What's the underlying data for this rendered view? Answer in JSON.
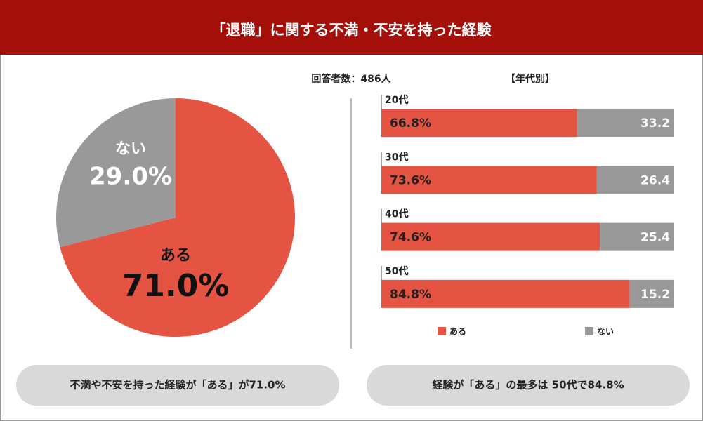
{
  "title": "「退職」に関する不満・不安を持った経験",
  "respondents": "回答者数：486人",
  "chart_data": [
    {
      "type": "pie",
      "categories": [
        "ある",
        "ない"
      ],
      "values": [
        71.0,
        29.0
      ],
      "value_labels": [
        "71.0%",
        "29.0%"
      ],
      "colors": [
        "#e55343",
        "#999999"
      ]
    },
    {
      "type": "bar",
      "orientation": "horizontal",
      "stacked": true,
      "title": "【年代別】",
      "categories": [
        "20代",
        "30代",
        "40代",
        "50代"
      ],
      "series": [
        {
          "name": "ある",
          "color": "#e55343",
          "values": [
            66.8,
            73.6,
            74.6,
            84.8
          ],
          "value_labels": [
            "66.8%",
            "73.6%",
            "74.6%",
            "84.8%"
          ]
        },
        {
          "name": "ない",
          "color": "#999999",
          "values": [
            33.2,
            26.4,
            25.4,
            15.2
          ]
        }
      ],
      "xlim": [
        0,
        100
      ]
    }
  ],
  "callouts": [
    "不満や不安を持った経験が「ある」が71.0%",
    "経験が「ある」の最多は 50代で84.8%"
  ]
}
